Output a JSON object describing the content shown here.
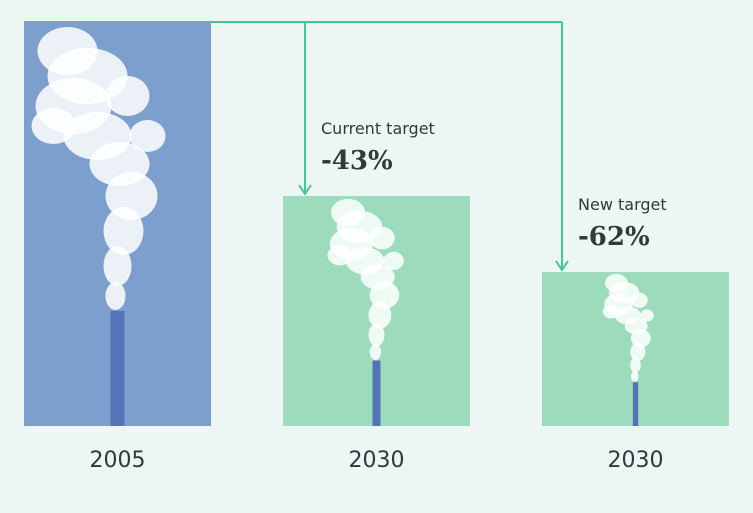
{
  "chart_data": {
    "type": "bar",
    "title": "",
    "categories": [
      "2005",
      "2030",
      "2030"
    ],
    "values": [
      100,
      57,
      38
    ],
    "reductions": [
      "",
      "-43%",
      "-62%"
    ],
    "annotation_labels": [
      "",
      "Current target",
      "New target"
    ],
    "ylim": [
      0,
      100
    ],
    "grid": false,
    "legend": "none"
  },
  "colors": {
    "background": "#eef6f3",
    "baseline_bar": "#7d9fce",
    "target_bar": "#9ddbbd",
    "connector": "#3ec98e",
    "chimney": "#5574b8",
    "smoke": "#ffffff"
  },
  "icons": [
    "smokestack-image"
  ]
}
